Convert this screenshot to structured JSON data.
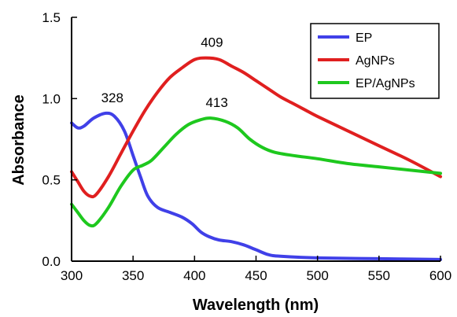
{
  "chart_data": {
    "type": "line",
    "title": "",
    "xlabel": "Wavelength (nm)",
    "ylabel": "Absorbance",
    "xlim": [
      300,
      600
    ],
    "ylim": [
      0,
      1.5
    ],
    "x_ticks": [
      300,
      350,
      400,
      450,
      500,
      550,
      600
    ],
    "x_tick_labels": [
      "300",
      "350",
      "400",
      "450",
      "500",
      "550",
      "600"
    ],
    "y_ticks": [
      0,
      0.5,
      1.0,
      1.5
    ],
    "y_tick_labels": [
      "0.0",
      "0.5",
      "1.0",
      "1.5"
    ],
    "grid": false,
    "legend_position": "top-right",
    "series": [
      {
        "name": "EP",
        "color": "#4040e8",
        "points": [
          [
            300,
            0.85
          ],
          [
            305,
            0.82
          ],
          [
            310,
            0.83
          ],
          [
            318,
            0.88
          ],
          [
            328,
            0.91
          ],
          [
            335,
            0.89
          ],
          [
            343,
            0.8
          ],
          [
            350,
            0.65
          ],
          [
            356,
            0.52
          ],
          [
            362,
            0.4
          ],
          [
            370,
            0.33
          ],
          [
            380,
            0.3
          ],
          [
            390,
            0.27
          ],
          [
            398,
            0.23
          ],
          [
            405,
            0.18
          ],
          [
            412,
            0.15
          ],
          [
            420,
            0.13
          ],
          [
            430,
            0.12
          ],
          [
            440,
            0.1
          ],
          [
            450,
            0.07
          ],
          [
            460,
            0.04
          ],
          [
            470,
            0.03
          ],
          [
            500,
            0.02
          ],
          [
            550,
            0.015
          ],
          [
            600,
            0.01
          ]
        ]
      },
      {
        "name": "AgNPs",
        "color": "#e01f1f",
        "points": [
          [
            300,
            0.55
          ],
          [
            305,
            0.49
          ],
          [
            310,
            0.43
          ],
          [
            315,
            0.4
          ],
          [
            320,
            0.41
          ],
          [
            330,
            0.52
          ],
          [
            340,
            0.66
          ],
          [
            350,
            0.8
          ],
          [
            360,
            0.93
          ],
          [
            370,
            1.04
          ],
          [
            380,
            1.13
          ],
          [
            390,
            1.19
          ],
          [
            400,
            1.24
          ],
          [
            409,
            1.25
          ],
          [
            420,
            1.24
          ],
          [
            430,
            1.2
          ],
          [
            440,
            1.16
          ],
          [
            450,
            1.11
          ],
          [
            460,
            1.06
          ],
          [
            470,
            1.01
          ],
          [
            480,
            0.97
          ],
          [
            490,
            0.93
          ],
          [
            500,
            0.89
          ],
          [
            525,
            0.8
          ],
          [
            550,
            0.71
          ],
          [
            575,
            0.62
          ],
          [
            600,
            0.52
          ]
        ]
      },
      {
        "name": "EP/AgNPs",
        "color": "#1ec81e",
        "points": [
          [
            300,
            0.35
          ],
          [
            305,
            0.3
          ],
          [
            310,
            0.25
          ],
          [
            315,
            0.22
          ],
          [
            320,
            0.23
          ],
          [
            330,
            0.33
          ],
          [
            340,
            0.46
          ],
          [
            350,
            0.56
          ],
          [
            358,
            0.59
          ],
          [
            365,
            0.62
          ],
          [
            375,
            0.7
          ],
          [
            385,
            0.78
          ],
          [
            395,
            0.84
          ],
          [
            405,
            0.87
          ],
          [
            413,
            0.88
          ],
          [
            425,
            0.86
          ],
          [
            435,
            0.82
          ],
          [
            445,
            0.75
          ],
          [
            455,
            0.7
          ],
          [
            465,
            0.67
          ],
          [
            480,
            0.65
          ],
          [
            500,
            0.63
          ],
          [
            525,
            0.6
          ],
          [
            550,
            0.58
          ],
          [
            575,
            0.56
          ],
          [
            600,
            0.54
          ]
        ]
      }
    ],
    "annotations": [
      {
        "text": "328",
        "x": 328,
        "y": 0.91
      },
      {
        "text": "409",
        "x": 409,
        "y": 1.25
      },
      {
        "text": "413",
        "x": 413,
        "y": 0.88
      }
    ]
  }
}
